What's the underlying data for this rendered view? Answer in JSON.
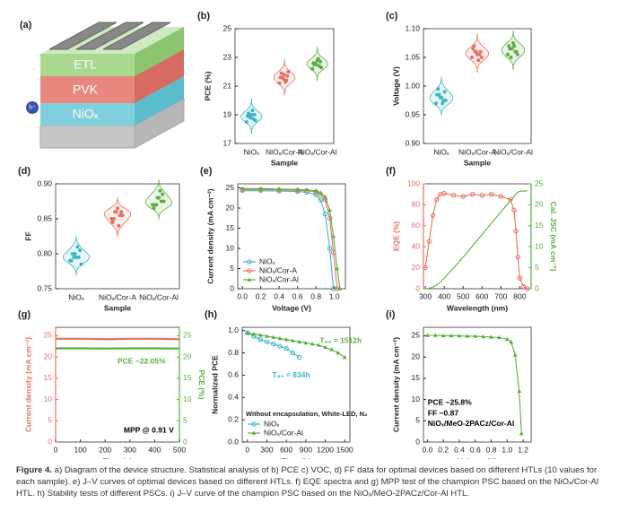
{
  "diagram": {
    "panel": "(a)",
    "layers": [
      "ETL",
      "PVK",
      "NiOₓ"
    ],
    "hole": "h⁺"
  },
  "chart_data": [
    {
      "type": "violin",
      "panel": "(b)",
      "xlabel": "Sample",
      "ylabel": "PCE (%)",
      "categories": [
        "NiOₓ",
        "NiOₓ/Cor-A",
        "NiOₓ/Cor-Al"
      ],
      "colors": [
        "#3ab5c6",
        "#e8705f",
        "#5aaf3e"
      ],
      "values": [
        [
          18.5,
          18.7,
          18.8,
          18.9,
          19.0,
          19.0,
          19.1,
          18.6,
          19.3,
          18.9
        ],
        [
          21.2,
          21.4,
          21.5,
          21.6,
          21.7,
          21.8,
          21.9,
          22.0,
          21.3,
          21.6
        ],
        [
          22.2,
          22.4,
          22.5,
          22.6,
          22.7,
          22.8,
          22.5,
          22.3,
          22.9,
          22.6
        ]
      ],
      "ylim": [
        17,
        25
      ],
      "yticks": [
        17,
        19,
        21,
        23,
        25
      ]
    },
    {
      "type": "violin",
      "panel": "(c)",
      "xlabel": "Sample",
      "ylabel": "Voltage (V)",
      "categories": [
        "NiOₓ",
        "NiOₓ/Cor-A",
        "NiOₓ/Cor-Al"
      ],
      "colors": [
        "#3ab5c6",
        "#e8705f",
        "#5aaf3e"
      ],
      "values": [
        [
          0.97,
          0.975,
          0.98,
          0.985,
          0.99,
          0.98,
          0.995,
          0.975,
          0.97,
          0.985
        ],
        [
          1.05,
          1.055,
          1.06,
          1.065,
          1.06,
          1.055,
          1.07,
          1.05,
          1.045,
          1.06
        ],
        [
          1.055,
          1.06,
          1.065,
          1.07,
          1.06,
          1.075,
          1.065,
          1.055,
          1.07,
          1.05
        ]
      ],
      "ylim": [
        0.9,
        1.1
      ],
      "yticks": [
        {
          "value": 0.9,
          "label": "0.90"
        },
        0.95,
        {
          "value": 1,
          "label": "1.00"
        },
        1.05,
        {
          "value": 1.1,
          "label": "1.10"
        }
      ]
    },
    {
      "type": "violin",
      "panel": "(d)",
      "xlabel": "Sample",
      "ylabel": "FF",
      "categories": [
        "NiOₓ",
        "NiOₓ/Cor-A",
        "NiOₓ/Cor-Al"
      ],
      "colors": [
        "#3ab5c6",
        "#e8705f",
        "#5aaf3e"
      ],
      "values": [
        [
          0.79,
          0.795,
          0.8,
          0.79,
          0.805,
          0.795,
          0.8,
          0.785,
          0.81,
          0.795
        ],
        [
          0.85,
          0.855,
          0.86,
          0.845,
          0.86,
          0.865,
          0.85,
          0.855,
          0.84,
          0.86
        ],
        [
          0.87,
          0.875,
          0.88,
          0.865,
          0.885,
          0.88,
          0.87,
          0.875,
          0.89,
          0.87
        ]
      ],
      "ylim": [
        0.75,
        0.9
      ],
      "yticks": [
        0.75,
        {
          "value": 0.8,
          "label": "0.80"
        },
        0.85,
        {
          "value": 0.9,
          "label": "0.90"
        }
      ]
    },
    {
      "type": "line",
      "panel": "(e)",
      "xlabel": "Voltage (V)",
      "ylabel": "Current density (mA cm⁻²)",
      "legend": "lower left",
      "x": [
        0,
        0.2,
        0.4,
        0.6,
        0.7,
        0.8,
        0.85,
        0.9,
        0.95,
        0.99,
        1.03,
        1.06
      ],
      "series": [
        {
          "name": "NiOₓ",
          "color": "#3ab5c6",
          "marker": "circle",
          "values": [
            24.3,
            24.3,
            24.2,
            24.1,
            23.9,
            23.3,
            22,
            18.5,
            10,
            0,
            null,
            null
          ]
        },
        {
          "name": "NiOₓ/Cor-A",
          "color": "#e8705f",
          "marker": "circle",
          "values": [
            24.6,
            24.6,
            24.5,
            24.4,
            24.3,
            24,
            23.4,
            22,
            17.5,
            9,
            0,
            null
          ]
        },
        {
          "name": "NiOₓ/Cor-Al",
          "color": "#5aaf3e",
          "marker": "triangle",
          "values": [
            24.8,
            24.8,
            24.7,
            24.6,
            24.5,
            24.3,
            23.8,
            22.8,
            19.5,
            13,
            5,
            0
          ]
        }
      ],
      "xlim": [
        -0.05,
        1.12
      ],
      "xticks": [
        {
          "value": 0,
          "label": "0.0"
        },
        0.2,
        0.4,
        0.6,
        0.8,
        {
          "value": 1,
          "label": "1.0"
        }
      ],
      "ylim": [
        0,
        26
      ],
      "yticks": [
        0,
        5,
        10,
        15,
        20,
        25
      ]
    },
    {
      "type": "line",
      "panel": "(f)",
      "xlabel": "Wavelength (nm)",
      "ylabel": "EQE (%)",
      "y2label": "Cal. JSC (mA cm⁻²)",
      "x": [
        300,
        320,
        340,
        360,
        380,
        400,
        450,
        500,
        550,
        600,
        650,
        700,
        750,
        770,
        780,
        790,
        800,
        820,
        840
      ],
      "series": [
        {
          "name": "EQE",
          "color": "#e8705f",
          "marker": "circle",
          "values": [
            20,
            45,
            70,
            85,
            90,
            91,
            89,
            88,
            90,
            89,
            90,
            88,
            85,
            75,
            55,
            30,
            10,
            2,
            0
          ]
        },
        {
          "name": "JSC",
          "color": "#5aaf3e",
          "marker": "none",
          "axis": "y2",
          "values": [
            0,
            0.1,
            0.4,
            0.9,
            1.6,
            2.5,
            5,
            7.5,
            10.2,
            12.9,
            15.6,
            18.3,
            21,
            21.9,
            22.6,
            23,
            23.2,
            23.3,
            23.3
          ]
        }
      ],
      "xlim": [
        290,
        860
      ],
      "xticks": [
        300,
        400,
        500,
        600,
        700,
        800
      ],
      "ylim": [
        0,
        100
      ],
      "yticks": [
        0,
        20,
        40,
        60,
        80,
        100
      ],
      "y2lim": [
        0,
        25
      ],
      "y2ticks": [
        0,
        5,
        10,
        15,
        20,
        25
      ]
    },
    {
      "type": "line",
      "panel": "(g)",
      "xlabel": "Time (s)",
      "ylabel": "Current density (mA cm⁻²)",
      "y2label": "PCE (%)",
      "annotations": [
        {
          "text": "PCE ~22.05%",
          "color": "#5aaf3e"
        },
        {
          "text": "MPP @ 0.91 V",
          "color": "#000"
        }
      ],
      "x": [
        0,
        100,
        200,
        300,
        400,
        500
      ],
      "series": [
        {
          "name": "J",
          "color": "#e8705f",
          "marker": "none",
          "values": [
            24.3,
            24.3,
            24.2,
            24.3,
            24.3,
            24.2
          ]
        },
        {
          "name": "PCE",
          "color": "#5aaf3e",
          "marker": "none",
          "axis": "y2",
          "values": [
            22.05,
            22.05,
            22.0,
            22.05,
            22.05,
            22.0
          ]
        }
      ],
      "xlim": [
        0,
        500
      ],
      "xticks": [
        0,
        100,
        200,
        300,
        400,
        500
      ],
      "ylim": [
        0,
        27
      ],
      "yticks": [
        0,
        5,
        10,
        15,
        20,
        25
      ],
      "y2lim": [
        0,
        27
      ],
      "y2ticks": [
        0,
        5,
        10,
        15,
        20,
        25
      ]
    },
    {
      "type": "line",
      "panel": "(h)",
      "xlabel": "Time (h)",
      "ylabel": "Normalized PCE",
      "legend": "lower left",
      "legend_title": "Without encapsulation, White-LED, N₂",
      "annotations": [
        {
          "text": "T₈₀ = 1512h",
          "color": "#5aaf3e"
        },
        {
          "text": "T₈₀ = 834h",
          "color": "#3ab5c6"
        }
      ],
      "x": [
        0,
        100,
        200,
        300,
        400,
        500,
        600,
        700,
        800,
        900,
        1000,
        1100,
        1200,
        1300,
        1400,
        1500
      ],
      "series": [
        {
          "name": "NiOₓ",
          "color": "#3ab5c6",
          "marker": "circle",
          "values": [
            0.98,
            0.95,
            0.92,
            0.9,
            0.88,
            0.86,
            0.84,
            0.8,
            0.76,
            null,
            null,
            null,
            null,
            null,
            null,
            null
          ]
        },
        {
          "name": "NiOₓ/Cor-Al",
          "color": "#5aaf3e",
          "marker": "triangle",
          "values": [
            0.98,
            0.97,
            0.96,
            0.95,
            0.94,
            0.93,
            0.92,
            0.91,
            0.9,
            0.89,
            0.88,
            0.87,
            0.85,
            0.83,
            0.8,
            0.76
          ]
        }
      ],
      "xlim": [
        -80,
        1580
      ],
      "xticks": [
        0,
        300,
        600,
        900,
        1200,
        1500
      ],
      "ylim": [
        0,
        1.03
      ],
      "yticks": [
        {
          "value": 0,
          "label": "0.0"
        },
        0.2,
        0.4,
        0.6,
        0.8,
        {
          "value": 1,
          "label": "1.0"
        }
      ]
    },
    {
      "type": "line",
      "panel": "(i)",
      "xlabel": "Voltage (V)",
      "ylabel": "Current density (mA cm⁻²)",
      "annotations": [
        {
          "text": "PCE ~25.8%",
          "color": "#000"
        },
        {
          "text": "FF ~0.87",
          "color": "#000"
        },
        {
          "text": "NiOₓ/MeO-2PACz/Cor-Al",
          "color": "#000"
        }
      ],
      "x": [
        0,
        0.1,
        0.2,
        0.3,
        0.4,
        0.5,
        0.6,
        0.7,
        0.8,
        0.9,
        1.0,
        1.05,
        1.1,
        1.15,
        1.18
      ],
      "series": [
        {
          "name": "J",
          "color": "#5aaf3e",
          "marker": "triangle",
          "values": [
            25.1,
            25.1,
            25,
            25,
            25,
            24.9,
            24.9,
            24.8,
            24.7,
            24.6,
            24.2,
            23.5,
            20.5,
            12,
            2
          ]
        }
      ],
      "xlim": [
        -0.05,
        1.3
      ],
      "xticks": [
        {
          "value": 0,
          "label": "0.0"
        },
        0.2,
        0.4,
        0.6,
        0.8,
        {
          "value": 1,
          "label": "1.0"
        },
        1.2
      ],
      "ylim": [
        0,
        27
      ],
      "yticks": [
        0,
        5,
        10,
        15,
        20,
        25
      ]
    }
  ],
  "caption": {
    "label": "Figure 4.",
    "text": "a) Diagram of the device structure. Statistical analysis of b) PCE c) VOC, d) FF data for optimal devices based on different HTLs (10 values for each sample). e) J–V curves of optimal devices based on different HTLs. f) EQE spectra and g) MPP test of the champion PSC based on the NiOₓ/Cor-Al HTL. h) Stability tests of different PSCs. i) J–V curve of the champion PSC based on the NiOₓ/MeO-2PACz/Cor-Al HTL."
  }
}
